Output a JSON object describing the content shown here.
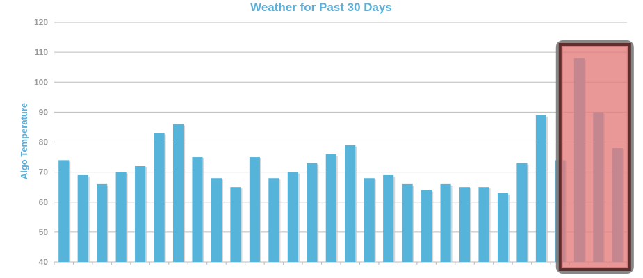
{
  "chart_data": {
    "type": "bar",
    "title": "Weather for Past 30 Days",
    "xlabel": "",
    "ylabel": "Algo Temperature",
    "ylim": [
      40,
      120
    ],
    "yticks": [
      40,
      50,
      60,
      70,
      80,
      90,
      100,
      110,
      120
    ],
    "grid": true,
    "legend": "none",
    "values": [
      74,
      69,
      66,
      70,
      72,
      83,
      86,
      75,
      68,
      65,
      75,
      68,
      70,
      73,
      76,
      79,
      68,
      69,
      66,
      64,
      66,
      65,
      65,
      63,
      73,
      89,
      74,
      108,
      90,
      78
    ],
    "highlight": {
      "last_n": 3
    }
  },
  "colors": {
    "bar": "#56b4da",
    "bar_shadow": "#cccccc",
    "grid": "#bcbcbc",
    "axis_text": "#9a9a9a",
    "title": "#5aaed8",
    "highlight_fill": "#e47a7a",
    "highlight_border": "#5e2d2d",
    "highlight_outer": "#7d7d7d"
  }
}
